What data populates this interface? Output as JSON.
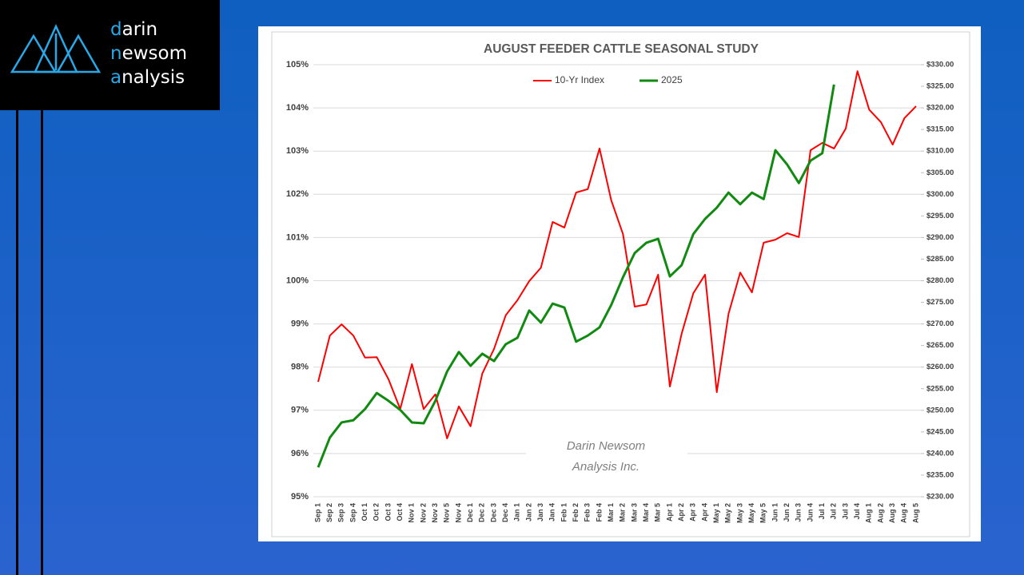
{
  "logo": {
    "lines": [
      "darin",
      "newsom",
      "analysis"
    ]
  },
  "chart_data": {
    "type": "line",
    "title": "AUGUST FEEDER CATTLE SEASONAL STUDY",
    "watermark": [
      "Darin Newsom",
      "Analysis Inc."
    ],
    "categories": [
      "Sep 1",
      "Sep 2",
      "Sep 3",
      "Sep 4",
      "Oct 1",
      "Oct 2",
      "Oct 3",
      "Oct 4",
      "Nov 1",
      "Nov 2",
      "Nov 3",
      "Nov 5",
      "Nov 4",
      "Dec 1",
      "Dec 2",
      "Dec 3",
      "Dec 4",
      "Jan 1",
      "Jan 2",
      "Jan 3",
      "Jan 4",
      "Feb 1",
      "Feb 2",
      "Feb 3",
      "Feb 4",
      "Mar 1",
      "Mar 2",
      "Mar 3",
      "Mar 4",
      "Mar 5",
      "Apr 1",
      "Apr 2",
      "Apr 3",
      "Apr 4",
      "May 1",
      "May 2",
      "May 3",
      "May 4",
      "May 5",
      "Jun 1",
      "Jun 2",
      "Jun 3",
      "Jun 4",
      "Jul 1",
      "Jul 2",
      "Jul 3",
      "Jul 4",
      "Aug 1",
      "Aug 2",
      "Aug 3",
      "Aug 4",
      "Aug 5"
    ],
    "series": [
      {
        "name": "10-Yr Index",
        "color": "#ff0000",
        "axis": "y",
        "values": [
          97.66,
          98.73,
          98.99,
          98.73,
          98.22,
          98.23,
          97.72,
          97.03,
          98.07,
          97.03,
          97.37,
          96.35,
          97.09,
          96.63,
          97.85,
          98.42,
          99.2,
          99.55,
          99.99,
          100.3,
          101.36,
          101.23,
          102.04,
          102.12,
          103.06,
          101.86,
          101.08,
          99.4,
          99.45,
          100.14,
          97.55,
          98.77,
          99.71,
          100.14,
          97.42,
          99.23,
          100.19,
          99.73,
          100.88,
          100.95,
          101.1,
          101.01,
          103.02,
          103.19,
          103.06,
          103.52,
          104.85,
          103.96,
          103.67,
          103.15,
          103.76,
          104.04
        ]
      },
      {
        "name": "2025",
        "color": "#108a10",
        "axis": "y2",
        "values": [
          236.8,
          243.7,
          247.2,
          247.7,
          250.3,
          254.0,
          252.2,
          250.1,
          247.2,
          247.0,
          252.2,
          259.0,
          263.5,
          260.3,
          263.1,
          261.4,
          265.3,
          266.8,
          273.1,
          270.3,
          274.7,
          273.8,
          265.9,
          267.3,
          269.2,
          274.4,
          280.8,
          286.4,
          288.8,
          289.7,
          281.0,
          283.6,
          290.8,
          294.3,
          296.9,
          300.4,
          297.7,
          300.4,
          298.9,
          310.2,
          306.9,
          302.6,
          307.8,
          309.5,
          325.4,
          null,
          null,
          null,
          null,
          null,
          null,
          null
        ]
      }
    ],
    "ylim": [
      95,
      105
    ],
    "yticks": [
      {
        "value": 95,
        "label": "95%"
      },
      {
        "value": 96,
        "label": "96%"
      },
      {
        "value": 97,
        "label": "97%"
      },
      {
        "value": 98,
        "label": "98%"
      },
      {
        "value": 99,
        "label": "99%"
      },
      {
        "value": 100,
        "label": "100%"
      },
      {
        "value": 101,
        "label": "101%"
      },
      {
        "value": 102,
        "label": "102%"
      },
      {
        "value": 103,
        "label": "103%"
      },
      {
        "value": 104,
        "label": "104%"
      },
      {
        "value": 105,
        "label": "105%"
      }
    ],
    "y2lim": [
      230,
      330
    ],
    "y2ticks": [
      {
        "value": 230,
        "label": "$230.00"
      },
      {
        "value": 235,
        "label": "$235.00"
      },
      {
        "value": 240,
        "label": "$240.00"
      },
      {
        "value": 245,
        "label": "$245.00"
      },
      {
        "value": 250,
        "label": "$250.00"
      },
      {
        "value": 255,
        "label": "$255.00"
      },
      {
        "value": 260,
        "label": "$260.00"
      },
      {
        "value": 265,
        "label": "$265.00"
      },
      {
        "value": 270,
        "label": "$270.00"
      },
      {
        "value": 275,
        "label": "$275.00"
      },
      {
        "value": 280,
        "label": "$280.00"
      },
      {
        "value": 285,
        "label": "$285.00"
      },
      {
        "value": 290,
        "label": "$290.00"
      },
      {
        "value": 295,
        "label": "$295.00"
      },
      {
        "value": 300,
        "label": "$300.00"
      },
      {
        "value": 305,
        "label": "$305.00"
      },
      {
        "value": 310,
        "label": "$310.00"
      },
      {
        "value": 315,
        "label": "$315.00"
      },
      {
        "value": 320,
        "label": "$320.00"
      },
      {
        "value": 325,
        "label": "$325.00"
      },
      {
        "value": 330,
        "label": "$330.00"
      }
    ],
    "grid": true,
    "legend": "top"
  }
}
